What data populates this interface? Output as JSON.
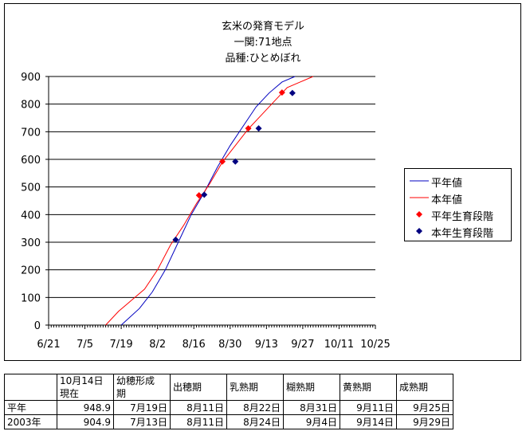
{
  "title": {
    "line1": "玄米の発育モデル",
    "line2": "一関:71地点",
    "line3": "品種:ひとめぼれ"
  },
  "legend": {
    "avg_line": "平年値",
    "cur_line": "本年値",
    "avg_stage": "平年生育段階",
    "cur_stage": "本年生育段階"
  },
  "colors": {
    "avg": "#0000c0",
    "cur": "#ff0000",
    "avg_marker": "#ff0000",
    "cur_marker": "#000080",
    "grid": "#000000"
  },
  "chart_data": {
    "type": "line",
    "x_axis": {
      "ticks": [
        "6/21",
        "7/5",
        "7/19",
        "8/2",
        "8/16",
        "8/30",
        "9/13",
        "9/27",
        "10/11",
        "10/25"
      ],
      "tick_step_days": 14,
      "origin": "6/21"
    },
    "y_axis": {
      "ylim": [
        0,
        900
      ],
      "ticks": [
        0,
        100,
        200,
        300,
        400,
        500,
        600,
        700,
        800,
        900
      ],
      "grid": true
    },
    "series": [
      {
        "name": "平年値",
        "points": [
          [
            28,
            0
          ],
          [
            35,
            60
          ],
          [
            40,
            120
          ],
          [
            45,
            200
          ],
          [
            50,
            300
          ],
          [
            55,
            400
          ],
          [
            60,
            480
          ],
          [
            65,
            570
          ],
          [
            70,
            650
          ],
          [
            75,
            720
          ],
          [
            80,
            790
          ],
          [
            85,
            840
          ],
          [
            90,
            880
          ],
          [
            95,
            910
          ]
        ]
      },
      {
        "name": "本年値",
        "points": [
          [
            22,
            0
          ],
          [
            27,
            50
          ],
          [
            32,
            90
          ],
          [
            37,
            130
          ],
          [
            42,
            200
          ],
          [
            47,
            290
          ],
          [
            52,
            360
          ],
          [
            57,
            440
          ],
          [
            62,
            510
          ],
          [
            67,
            590
          ],
          [
            72,
            650
          ],
          [
            77,
            710
          ],
          [
            82,
            760
          ],
          [
            87,
            810
          ],
          [
            92,
            860
          ],
          [
            97,
            880
          ],
          [
            102,
            900
          ]
        ]
      },
      {
        "name": "平年生育段階",
        "points": [
          [
            58,
            470
          ],
          [
            67,
            592
          ],
          [
            77,
            712
          ],
          [
            90,
            842
          ]
        ]
      },
      {
        "name": "本年生育段階",
        "points": [
          [
            49,
            309
          ],
          [
            60,
            472
          ],
          [
            72,
            592
          ],
          [
            81,
            712
          ],
          [
            94,
            840
          ]
        ]
      }
    ]
  },
  "table": {
    "headers": [
      {
        "line1": "",
        "line2": ""
      },
      {
        "line1": "10月14日",
        "line2": "現在"
      },
      {
        "line1": "幼穂形成",
        "line2": "期"
      },
      {
        "line1": "出穂期",
        "line2": ""
      },
      {
        "line1": "乳熟期",
        "line2": ""
      },
      {
        "line1": "糊熟期",
        "line2": ""
      },
      {
        "line1": "黄熟期",
        "line2": ""
      },
      {
        "line1": "成熟期",
        "line2": ""
      }
    ],
    "rows": [
      [
        "平年",
        "948.9",
        "7月19日",
        "8月11日",
        "8月22日",
        "8月31日",
        "9月11日",
        "9月25日"
      ],
      [
        "2003年",
        "904.9",
        "7月13日",
        "8月11日",
        "8月24日",
        "9月4日",
        "9月14日",
        "9月29日"
      ]
    ]
  }
}
